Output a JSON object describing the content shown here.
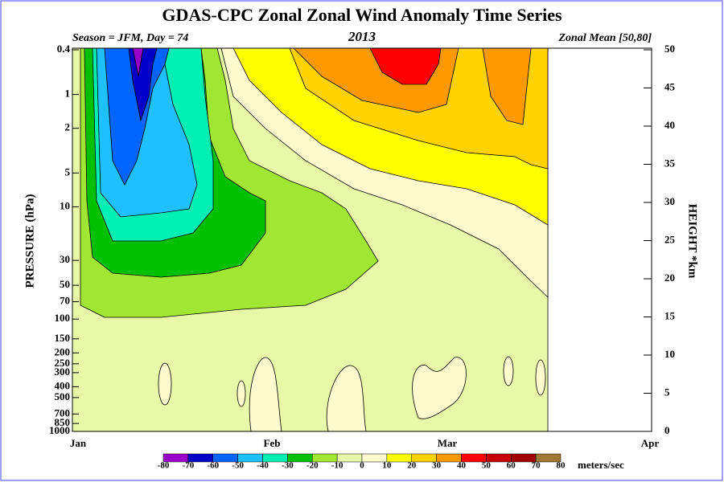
{
  "chart_data": {
    "type": "contour",
    "title": "GDAS-CPC Zonal Zonal Wind Anomaly Time Series",
    "subtitle_left": "Season = JFM, Day =  74",
    "subtitle_center": "2013",
    "subtitle_right": "Zonal Mean [50,80]",
    "ylabel": "PRESSURE (hPa)",
    "y2label": "HEIGHT *km",
    "categories": [
      "Jan",
      "Feb",
      "Mar",
      "Apr"
    ],
    "ylim": [
      1000,
      0.4
    ],
    "log_y": true,
    "yticks": [
      0.4,
      1,
      2,
      5,
      10,
      30,
      50,
      70,
      100,
      150,
      200,
      250,
      300,
      400,
      500,
      700,
      850,
      1000
    ],
    "y2lim": [
      0,
      50
    ],
    "y2ticks": [
      0,
      5,
      10,
      15,
      20,
      25,
      30,
      35,
      40,
      45,
      50
    ],
    "colorbar": {
      "label": "meters/sec",
      "levels": [
        -80,
        -70,
        -60,
        -50,
        -40,
        -30,
        -20,
        -10,
        0,
        10,
        20,
        30,
        40,
        50,
        60,
        70,
        80
      ],
      "colors": [
        "#9900cc",
        "#0000c8",
        "#0064ff",
        "#1ec0ff",
        "#00f0b4",
        "#00c000",
        "#a0e632",
        "#e8f8a8",
        "#fffacd",
        "#ffff00",
        "#ffd200",
        "#ff9900",
        "#ff0000",
        "#c80000",
        "#a00000",
        "#a07832"
      ]
    }
  }
}
